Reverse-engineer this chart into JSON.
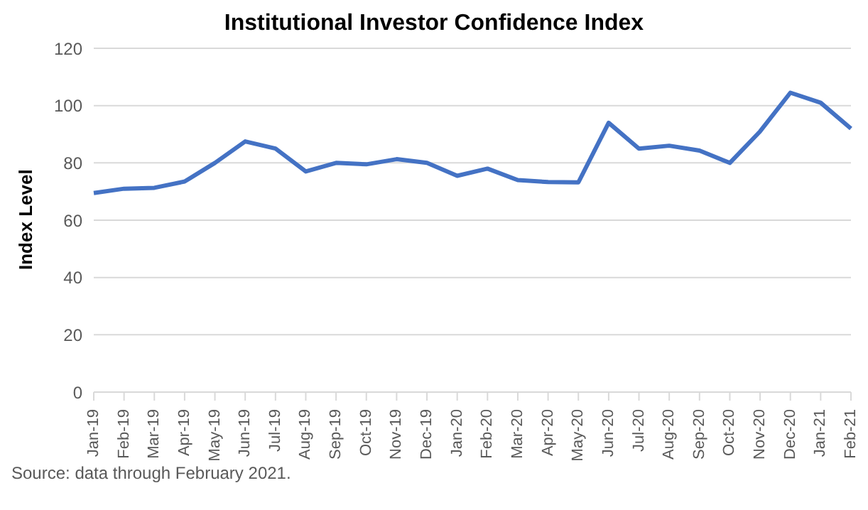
{
  "chart_data": {
    "type": "line",
    "title": "Institutional Investor Confidence Index",
    "ylabel": "Index Level",
    "categories": [
      "Jan-19",
      "Feb-19",
      "Mar-19",
      "Apr-19",
      "May-19",
      "Jun-19",
      "Jul-19",
      "Aug-19",
      "Sep-19",
      "Oct-19",
      "Nov-19",
      "Dec-19",
      "Jan-20",
      "Feb-20",
      "Mar-20",
      "Apr-20",
      "May-20",
      "Jun-20",
      "Jul-20",
      "Aug-20",
      "Sep-20",
      "Oct-20",
      "Nov-20",
      "Dec-20",
      "Jan-21",
      "Feb-21"
    ],
    "series": [
      {
        "color": "#4472c4",
        "values": [
          69.5,
          71,
          71.3,
          73.5,
          80,
          87.5,
          85,
          77,
          80,
          79.5,
          81.3,
          80,
          75.5,
          78,
          74,
          73.3,
          73.2,
          94,
          85,
          86,
          84.3,
          80,
          91,
          104.5,
          101,
          92
        ]
      }
    ],
    "ylim": [
      0,
      120
    ],
    "yticks": [
      0,
      20,
      40,
      60,
      80,
      100,
      120
    ],
    "grid": "y",
    "legend": false,
    "marker": "none",
    "line_style": "solid",
    "annotations": [
      "Source: data through February 2021."
    ]
  }
}
